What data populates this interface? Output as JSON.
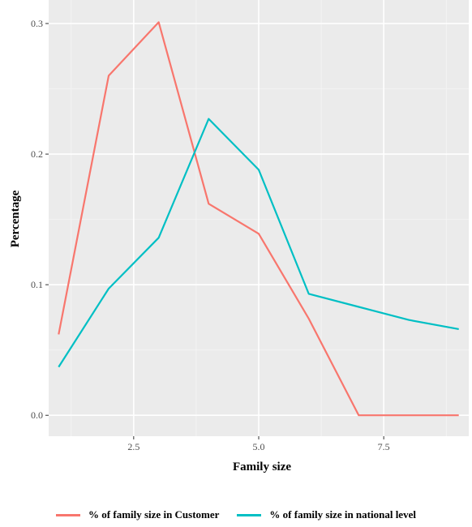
{
  "chart_data": {
    "type": "line",
    "xlabel": "Family size",
    "ylabel": "Percentage",
    "xlim": [
      0.8,
      9.2
    ],
    "ylim": [
      -0.016,
      0.318
    ],
    "xticks": [
      2.5,
      5.0,
      7.5
    ],
    "xtick_labels": [
      "2.5",
      "5.0",
      "7.5"
    ],
    "yticks": [
      0.0,
      0.1,
      0.2,
      0.3
    ],
    "ytick_labels": [
      "0.0",
      "0.1",
      "0.2",
      "0.3"
    ],
    "grid": true,
    "legend_position": "bottom",
    "series": [
      {
        "name": "% of family size in Customer",
        "color": "#F8766D",
        "x": [
          1,
          2,
          3,
          4,
          5,
          6,
          7,
          8,
          9
        ],
        "y": [
          0.062,
          0.26,
          0.301,
          0.162,
          0.139,
          0.074,
          0.0,
          0.0,
          0.0
        ]
      },
      {
        "name": "% of family size in national level",
        "color": "#00BFC4",
        "x": [
          1,
          2,
          3,
          4,
          5,
          6,
          7,
          8,
          9
        ],
        "y": [
          0.037,
          0.097,
          0.136,
          0.227,
          0.188,
          0.093,
          0.083,
          0.073,
          0.066
        ]
      }
    ]
  }
}
